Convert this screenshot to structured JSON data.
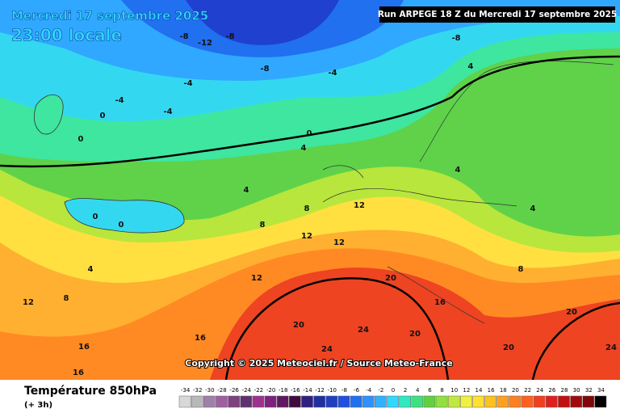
{
  "header": {
    "date": "Mercredi 17 septembre 2025",
    "time": "23:00 locale",
    "run": "Run ARPEGE 18 Z du Mercredi 17 septembre 2025"
  },
  "copyright": "Copyright © 2025 Meteociel.fr / Source Meteo-France",
  "legend": {
    "title": "Température 850hPa",
    "step": "(+ 3h)",
    "labels": [
      -34,
      -32,
      -30,
      -28,
      -26,
      -24,
      -22,
      -20,
      -18,
      -16,
      -14,
      -12,
      -10,
      -8,
      -6,
      -4,
      -2,
      0,
      2,
      4,
      6,
      8,
      10,
      12,
      14,
      16,
      18,
      20,
      22,
      24,
      26,
      28,
      30,
      32,
      34
    ],
    "colors": [
      "#d8d8d8",
      "#b8b8b8",
      "#a080a8",
      "#a060a0",
      "#804080",
      "#603070",
      "#a03090",
      "#802080",
      "#601860",
      "#400c40",
      "#302080",
      "#2030a0",
      "#2040c0",
      "#2050e0",
      "#2070f0",
      "#3090ff",
      "#30b0ff",
      "#30d8ff",
      "#30e8c0",
      "#40e080",
      "#60d040",
      "#90e040",
      "#c0e840",
      "#f0f040",
      "#ffe030",
      "#ffc020",
      "#ffa020",
      "#ff8020",
      "#ff6020",
      "#f04020",
      "#e02020",
      "#c01010",
      "#a00c0c",
      "#800808",
      "#000000"
    ]
  },
  "map_labels": [
    -12,
    -8,
    -8,
    -8,
    -8,
    -4,
    -4,
    -4,
    -4,
    0,
    0,
    0,
    4,
    4,
    4,
    4,
    4,
    8,
    8,
    8,
    12,
    12,
    12,
    12,
    16,
    16,
    16,
    20,
    20,
    20,
    24,
    24,
    0,
    0,
    4,
    8,
    12,
    16,
    20,
    20,
    24
  ]
}
